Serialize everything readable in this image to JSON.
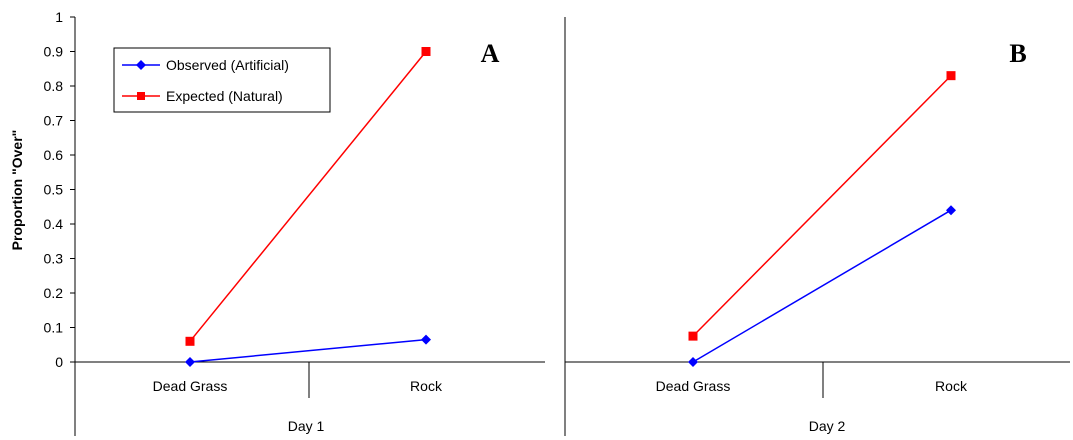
{
  "chart_data": {
    "type": "line",
    "ylabel": "Proportion \"Over\"",
    "ylim": [
      0,
      1
    ],
    "yticks": [
      "0",
      "0.1",
      "0.2",
      "0.3",
      "0.4",
      "0.5",
      "0.6",
      "0.7",
      "0.8",
      "0.9",
      "1"
    ],
    "categories": [
      "Dead Grass",
      "Rock"
    ],
    "legend": {
      "position": "top-left"
    },
    "colors": {
      "observed": "#0000ff",
      "expected": "#ff0000"
    },
    "panels": [
      {
        "label": "A",
        "group": "Day 1",
        "series": [
          {
            "name": "Observed (Artificial)",
            "marker": "diamond",
            "values": [
              0.0,
              0.065
            ]
          },
          {
            "name": "Expected (Natural)",
            "marker": "square",
            "values": [
              0.06,
              0.9
            ]
          }
        ]
      },
      {
        "label": "B",
        "group": "Day 2",
        "series": [
          {
            "name": "Observed (Artificial)",
            "marker": "diamond",
            "values": [
              0.0,
              0.44
            ]
          },
          {
            "name": "Expected (Natural)",
            "marker": "square",
            "values": [
              0.075,
              0.83
            ]
          }
        ]
      }
    ]
  }
}
